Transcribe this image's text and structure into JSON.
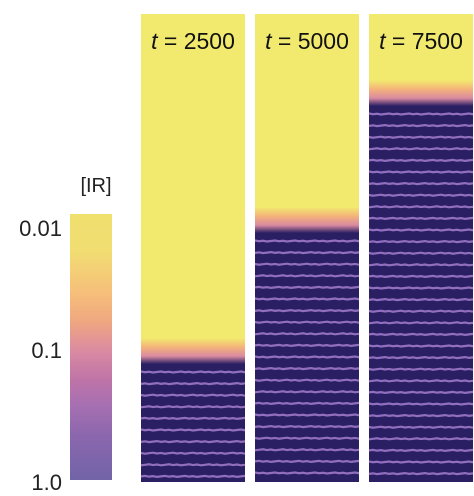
{
  "colorbar": {
    "title": "[IR]",
    "ticks": [
      "0.01",
      "0.1",
      "1.0"
    ]
  },
  "panels": [
    {
      "label_prefix": "t",
      "label_value": "= 2500",
      "front_fraction": 0.7
    },
    {
      "label_prefix": "t",
      "label_value": "= 5000",
      "front_fraction": 0.42
    },
    {
      "label_prefix": "t",
      "label_value": "= 7500",
      "front_fraction": 0.15
    }
  ],
  "colors": {
    "background_high": "#f2ea6e",
    "background_low": "#2a1f63",
    "stripe": "#9c78c8",
    "front_orange": "#f4b37a",
    "front_pink": "#d98aa0"
  }
}
